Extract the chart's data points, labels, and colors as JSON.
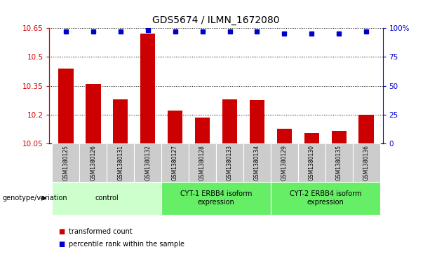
{
  "title": "GDS5674 / ILMN_1672080",
  "samples": [
    "GSM1380125",
    "GSM1380126",
    "GSM1380131",
    "GSM1380132",
    "GSM1380127",
    "GSM1380128",
    "GSM1380133",
    "GSM1380134",
    "GSM1380129",
    "GSM1380130",
    "GSM1380135",
    "GSM1380136"
  ],
  "bar_values": [
    10.44,
    10.36,
    10.28,
    10.62,
    10.22,
    10.185,
    10.28,
    10.275,
    10.125,
    10.105,
    10.115,
    10.2
  ],
  "percentile_values": [
    97,
    97,
    97,
    98,
    97,
    97,
    97,
    97,
    95,
    95,
    95,
    97
  ],
  "bar_color": "#cc0000",
  "dot_color": "#0000cc",
  "ylim_left": [
    10.05,
    10.65
  ],
  "ylim_right": [
    0,
    100
  ],
  "yticks_left": [
    10.05,
    10.2,
    10.35,
    10.5,
    10.65
  ],
  "ytick_labels_left": [
    "10.05",
    "10.2",
    "10.35",
    "10.5",
    "10.65"
  ],
  "yticks_right": [
    0,
    25,
    50,
    75,
    100
  ],
  "ytick_labels_right": [
    "0",
    "25",
    "50",
    "75",
    "100%"
  ],
  "groups": [
    {
      "label": "control",
      "start": 0,
      "end": 4,
      "color": "#ccffcc"
    },
    {
      "label": "CYT-1 ERBB4 isoform\nexpression",
      "start": 4,
      "end": 8,
      "color": "#66ee66"
    },
    {
      "label": "CYT-2 ERBB4 isoform\nexpression",
      "start": 8,
      "end": 12,
      "color": "#66ee66"
    }
  ],
  "legend_items": [
    {
      "label": "transformed count",
      "color": "#cc0000"
    },
    {
      "label": "percentile rank within the sample",
      "color": "#0000cc"
    }
  ],
  "genotype_label": "genotype/variation",
  "grid_color": "#000000",
  "left_axis_color": "#cc0000",
  "right_axis_color": "#0000cc",
  "bar_width": 0.55,
  "sample_box_color": "#cccccc",
  "fig_bg": "#ffffff"
}
